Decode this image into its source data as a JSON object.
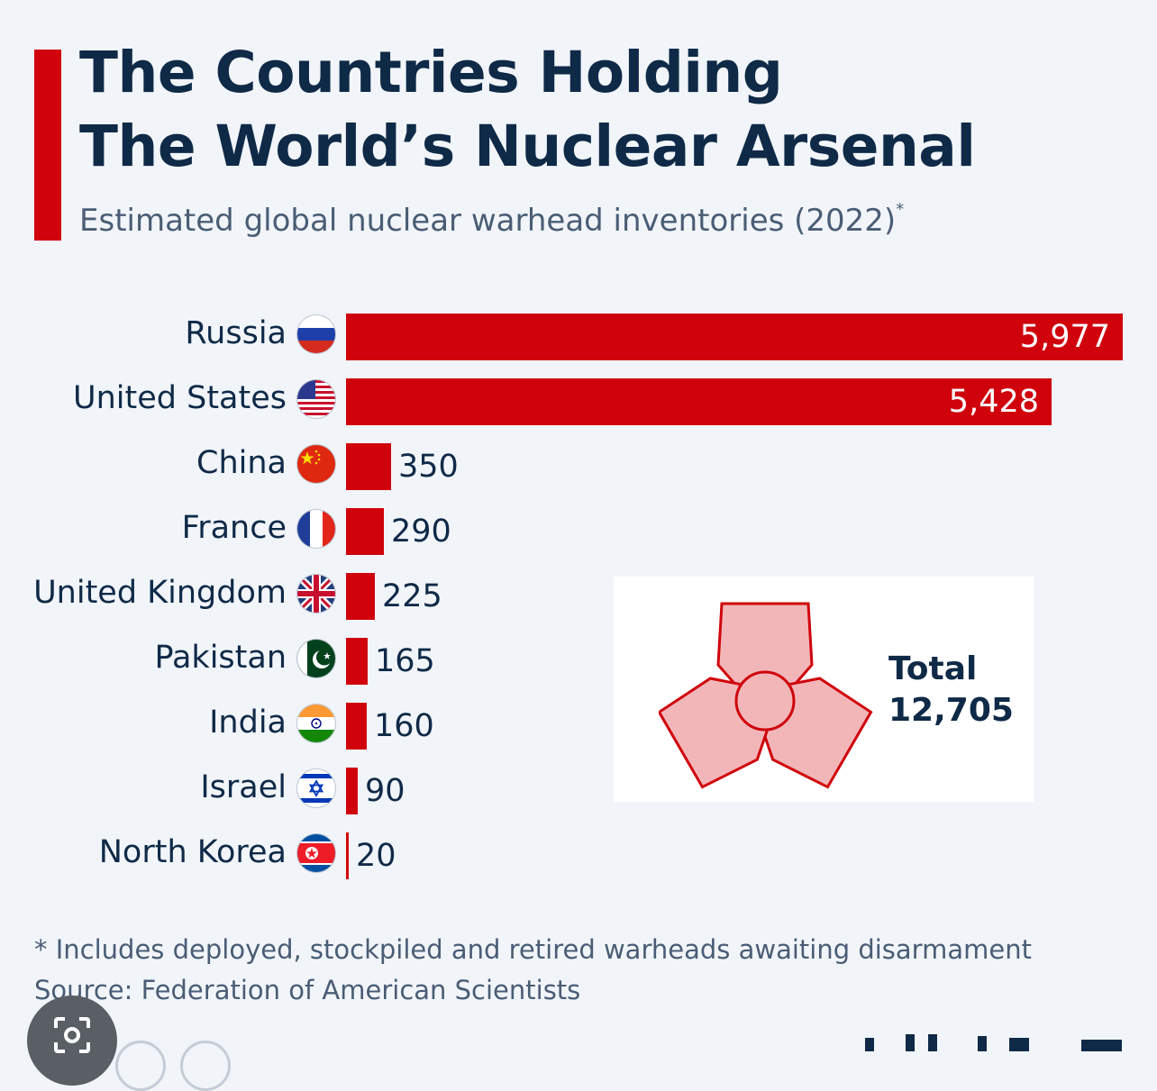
{
  "header": {
    "title_line1": "The Countries Holding",
    "title_line2": "The World’s Nuclear Arsenal",
    "subtitle": "Estimated global nuclear warhead inventories (2022)",
    "subtitle_marker": "*"
  },
  "chart_data": {
    "type": "bar",
    "orientation": "horizontal",
    "title": "The Countries Holding The World’s Nuclear Arsenal",
    "subtitle": "Estimated global nuclear warhead inventories (2022)*",
    "categories": [
      "Russia",
      "United States",
      "China",
      "France",
      "United Kingdom",
      "Pakistan",
      "India",
      "Israel",
      "North Korea"
    ],
    "values": [
      5977,
      5428,
      350,
      290,
      225,
      165,
      160,
      90,
      20
    ],
    "value_labels": [
      "5,977",
      "5,428",
      "350",
      "290",
      "225",
      "165",
      "160",
      "90",
      "20"
    ],
    "flags": [
      "russia-flag-icon",
      "usa-flag-icon",
      "china-flag-icon",
      "france-flag-icon",
      "uk-flag-icon",
      "pakistan-flag-icon",
      "india-flag-icon",
      "israel-flag-icon",
      "north-korea-flag-icon"
    ],
    "xlim": [
      0,
      5977
    ],
    "grid": false,
    "bar_color": "#d0030c",
    "annotation": {
      "label": "Total",
      "value": "12,705"
    }
  },
  "total": {
    "label": "Total",
    "value": "12,705",
    "icon": "radiation-icon"
  },
  "footer": {
    "note": "* Includes deployed, stockpiled and retired warheads awaiting disarmament",
    "source": "Source: Federation of American Scientists"
  },
  "colors": {
    "accent": "#d0030c",
    "text": "#0f2a47",
    "muted": "#4a5d74",
    "background": "#f1f5fa"
  }
}
